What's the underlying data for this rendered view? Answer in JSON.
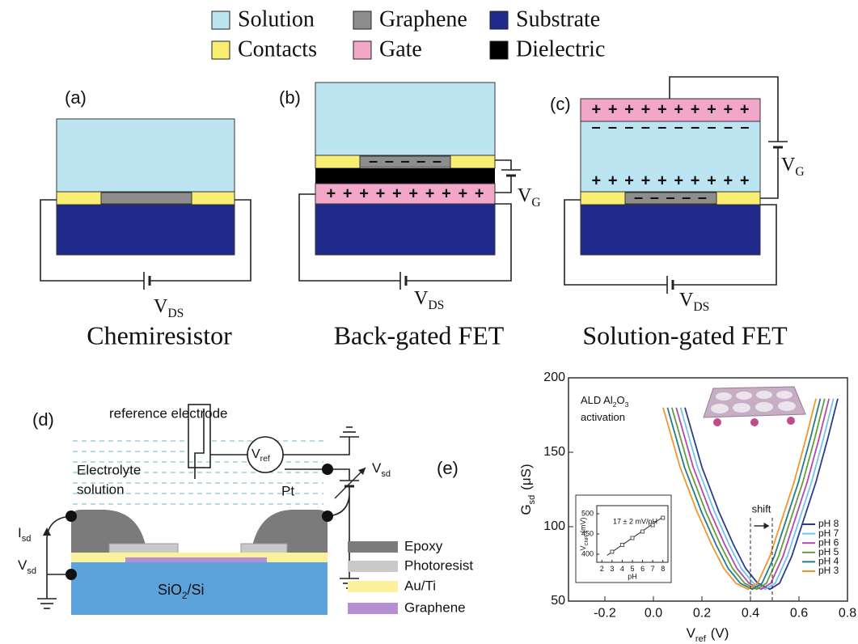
{
  "legend": [
    {
      "label": "Solution",
      "color": "#bde4f1"
    },
    {
      "label": "Graphene",
      "color": "#8d8d8d"
    },
    {
      "label": "Substrate",
      "color": "#1f2a8a"
    },
    {
      "label": "Contacts",
      "color": "#f8ee72"
    },
    {
      "label": "Gate",
      "color": "#f3a7c8"
    },
    {
      "label": "Dielectric",
      "color": "#000000"
    }
  ],
  "panels": {
    "a": {
      "label": "(a)",
      "vds": [
        "V",
        "DS"
      ],
      "caption": "Chemiresistor"
    },
    "b": {
      "label": "(b)",
      "graphene_charge": "– – – – –",
      "gate_charge": "+ + + + + + + + + +",
      "vg": [
        "V",
        "G"
      ],
      "vds": [
        "V",
        "DS"
      ],
      "caption": "Back-gated FET"
    },
    "c": {
      "label": "(c)",
      "gate_charge": "+ + + + + + + + + +",
      "solution_top_charge": "– – – – – – – – – –",
      "solution_bottom_charge": "+ + + + + + + + + +",
      "graphene_charge": "– – – – –",
      "vg": [
        "V",
        "G"
      ],
      "vds": [
        "V",
        "DS"
      ],
      "caption": "Solution-gated FET"
    },
    "d": {
      "label": "(d)",
      "reference": "reference electrode",
      "vref": [
        "V",
        "ref"
      ],
      "solution": [
        "Electrolyte",
        "solution"
      ],
      "pt": "Pt",
      "vsd_right": [
        "V",
        "sd"
      ],
      "isd": [
        "I",
        "sd"
      ],
      "vsd_left": [
        "V",
        "sd"
      ],
      "substrate": [
        "SiO",
        "2",
        "/Si"
      ],
      "legend": [
        {
          "label": "Epoxy",
          "color": "#7b7b7b"
        },
        {
          "label": "Photoresist",
          "color": "#c9c9c9"
        },
        {
          "label": "Au/Ti",
          "color": "#fbf09c"
        },
        {
          "label": "Graphene",
          "color": "#b68fd0"
        }
      ]
    },
    "e": {
      "label": "(e)"
    }
  },
  "chart_data": [
    {
      "type": "line",
      "xlabel": [
        "V",
        "ref",
        "(V)"
      ],
      "ylabel": [
        "G",
        "sd",
        "(μS)"
      ],
      "annotation": [
        [
          "ALD Al",
          "2",
          "O",
          "3"
        ],
        [
          "activation"
        ]
      ],
      "xlim": [
        -0.35,
        0.8
      ],
      "ylim": [
        50,
        200
      ],
      "xticks": [
        -0.2,
        {
          "value": 0,
          "label": "0.0"
        },
        0.2,
        0.4,
        0.6,
        0.8
      ],
      "yticks": [
        50,
        100,
        150,
        200
      ],
      "shift_label": "shift",
      "shift_lines": [
        0.4,
        0.49
      ],
      "legend_position": "lower right",
      "series": [
        {
          "name": "pH 8",
          "color": "#2b3c8c",
          "x": [
            0.13,
            0.2,
            0.27,
            0.33,
            0.38,
            0.43,
            0.48,
            0.52,
            0.57,
            0.62,
            0.67,
            0.72,
            0.76
          ],
          "values": [
            180,
            140,
            110,
            88,
            72,
            62,
            58,
            62,
            80,
            105,
            130,
            160,
            186
          ]
        },
        {
          "name": "pH 7",
          "color": "#6ec6ea",
          "x": [
            0.112,
            0.182,
            0.252,
            0.312,
            0.362,
            0.412,
            0.462,
            0.502,
            0.552,
            0.602,
            0.652,
            0.702,
            0.742
          ],
          "values": [
            180,
            140,
            110,
            88,
            72,
            62,
            58,
            62,
            80,
            105,
            130,
            160,
            186
          ]
        },
        {
          "name": "pH 6",
          "color": "#b04ab0",
          "x": [
            0.094,
            0.164,
            0.234,
            0.294,
            0.344,
            0.394,
            0.444,
            0.484,
            0.534,
            0.584,
            0.634,
            0.684,
            0.724
          ],
          "values": [
            180,
            140,
            110,
            88,
            72,
            62,
            58,
            62,
            80,
            105,
            130,
            160,
            186
          ]
        },
        {
          "name": "pH 5",
          "color": "#6a9a3a",
          "x": [
            0.076,
            0.146,
            0.216,
            0.276,
            0.326,
            0.376,
            0.426,
            0.466,
            0.516,
            0.566,
            0.616,
            0.666,
            0.706
          ],
          "values": [
            180,
            140,
            110,
            88,
            72,
            62,
            58,
            62,
            80,
            105,
            130,
            160,
            186
          ]
        },
        {
          "name": "pH 4",
          "color": "#1e7f8a",
          "x": [
            0.058,
            0.128,
            0.198,
            0.258,
            0.308,
            0.358,
            0.408,
            0.448,
            0.498,
            0.548,
            0.598,
            0.648,
            0.688
          ],
          "values": [
            180,
            140,
            110,
            88,
            72,
            62,
            58,
            62,
            80,
            105,
            130,
            160,
            186
          ]
        },
        {
          "name": "pH 3",
          "color": "#f0962a",
          "x": [
            0.04,
            0.11,
            0.18,
            0.24,
            0.29,
            0.34,
            0.39,
            0.43,
            0.48,
            0.53,
            0.58,
            0.63,
            0.67
          ],
          "values": [
            180,
            140,
            110,
            88,
            72,
            62,
            58,
            62,
            80,
            105,
            130,
            160,
            186
          ]
        }
      ]
    },
    {
      "type": "scatter",
      "xlabel": "pH",
      "ylabel": [
        "V",
        "CNP",
        "(mV)"
      ],
      "annotation": "17 ± 2 mV/pH",
      "xlim": [
        1.5,
        8.5
      ],
      "ylim": [
        380,
        520
      ],
      "xticks": [
        2,
        3,
        4,
        5,
        6,
        7,
        8
      ],
      "yticks": [
        400,
        450,
        500
      ],
      "x": [
        3,
        4,
        5,
        6,
        7,
        8
      ],
      "values": [
        406,
        423,
        440,
        456,
        472,
        490
      ],
      "color": "#555555",
      "fit_line": {
        "x": [
          2.5,
          8
        ],
        "values": [
          397,
          492
        ]
      }
    }
  ]
}
